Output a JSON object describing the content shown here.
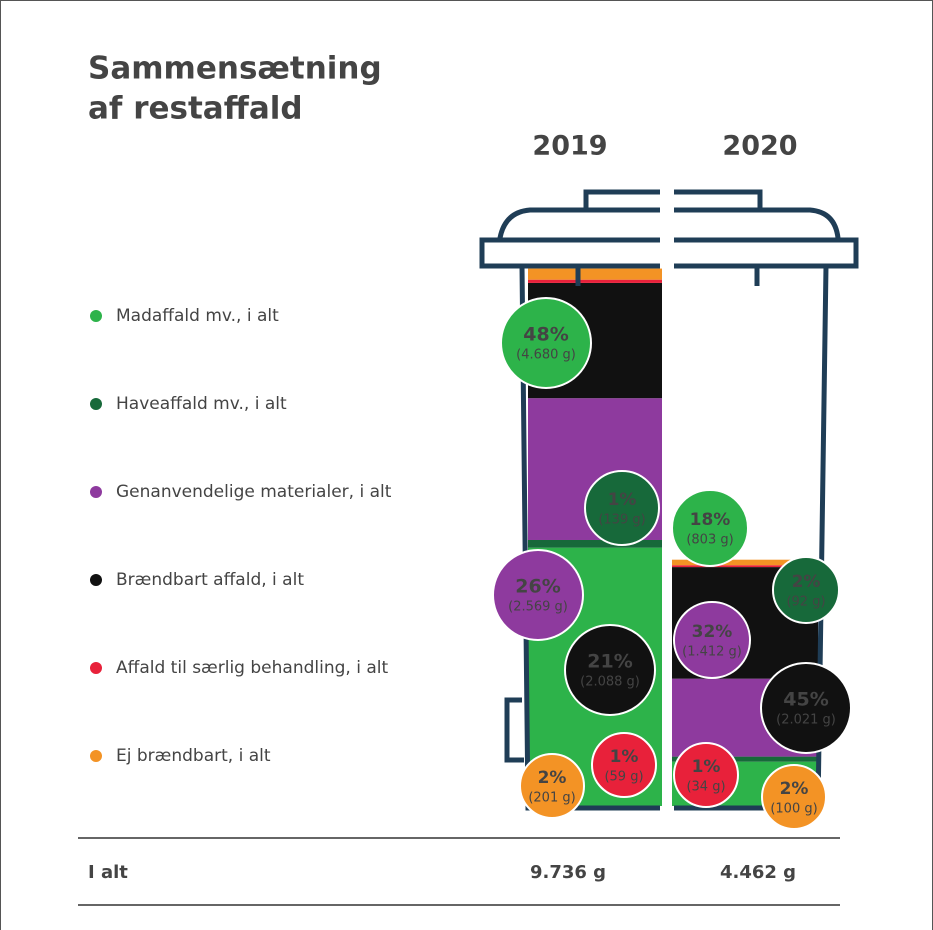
{
  "chart_data": {
    "type": "stacked-bin",
    "title": [
      "Sammensætning",
      "af restaffald"
    ],
    "categories": [
      "2019",
      "2020"
    ],
    "ylim": [
      0,
      10000
    ],
    "series": [
      {
        "name": "Madaffald mv., i alt",
        "color": "#2db34a",
        "values": [
          4680,
          803
        ],
        "value_labels": [
          "(4.680 g)",
          "(803 g)"
        ],
        "share_labels": [
          "48%",
          "18%"
        ]
      },
      {
        "name": "Haveaffald mv., i alt",
        "color": "#17693a",
        "values": [
          139,
          92
        ],
        "value_labels": [
          "(139 g)",
          "(92 g)"
        ],
        "share_labels": [
          "1%",
          "2%"
        ]
      },
      {
        "name": "Genanvendelige materialer, i alt",
        "color": "#8e3a9e",
        "values": [
          2569,
          1412
        ],
        "value_labels": [
          "(2.569 g)",
          "(1.412 g)"
        ],
        "share_labels": [
          "26%",
          "32%"
        ]
      },
      {
        "name": "Brændbart affald, i alt",
        "color": "#111111",
        "values": [
          2088,
          2021
        ],
        "value_labels": [
          "(2.088 g)",
          "(2.021 g)"
        ],
        "share_labels": [
          "21%",
          "45%"
        ]
      },
      {
        "name": "Affald til særlig behandling, i alt",
        "color": "#e8213a",
        "values": [
          59,
          34
        ],
        "value_labels": [
          "(59 g)",
          "(34 g)"
        ],
        "share_labels": [
          "1%",
          "1%"
        ]
      },
      {
        "name": "Ej brændbart, i alt",
        "color": "#f39325",
        "values": [
          201,
          100
        ],
        "value_labels": [
          "(201 g)",
          "(100 g)"
        ],
        "share_labels": [
          "2%",
          "2%"
        ]
      }
    ],
    "total_label": "I alt",
    "totals": [
      9736,
      4462
    ],
    "total_labels": [
      "9.736 g",
      "4.462 g"
    ]
  }
}
